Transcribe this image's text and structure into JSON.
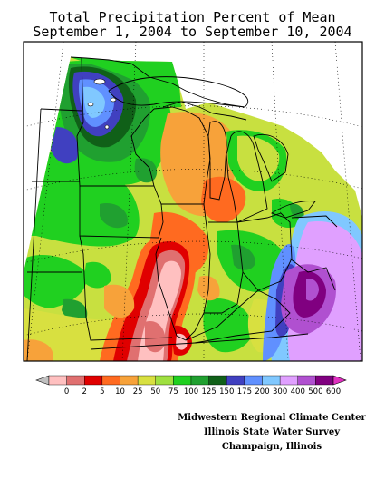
{
  "title_line1": "Total Precipitation Percent of Mean",
  "title_line2": "September 1, 2004 to September 10, 2004",
  "legend": {
    "labels": [
      "0",
      "2",
      "5",
      "10",
      "25",
      "50",
      "75",
      "100",
      "125",
      "150",
      "175",
      "200",
      "300",
      "400",
      "500",
      "600"
    ],
    "colors": [
      "#bfbfbf",
      "#ffc0c0",
      "#e07070",
      "#e00000",
      "#ff6a20",
      "#f7a23a",
      "#d8e040",
      "#9fe040",
      "#20d020",
      "#20a030",
      "#106018",
      "#4040c0",
      "#6090ff",
      "#80c8ff",
      "#e0a0ff",
      "#b050d0",
      "#800080",
      "#e030c0"
    ]
  },
  "credits": {
    "line1": "Midwestern Regional Climate Center",
    "line2": "Illinois State Water Survey",
    "line3": "Champaign, Illinois"
  }
}
